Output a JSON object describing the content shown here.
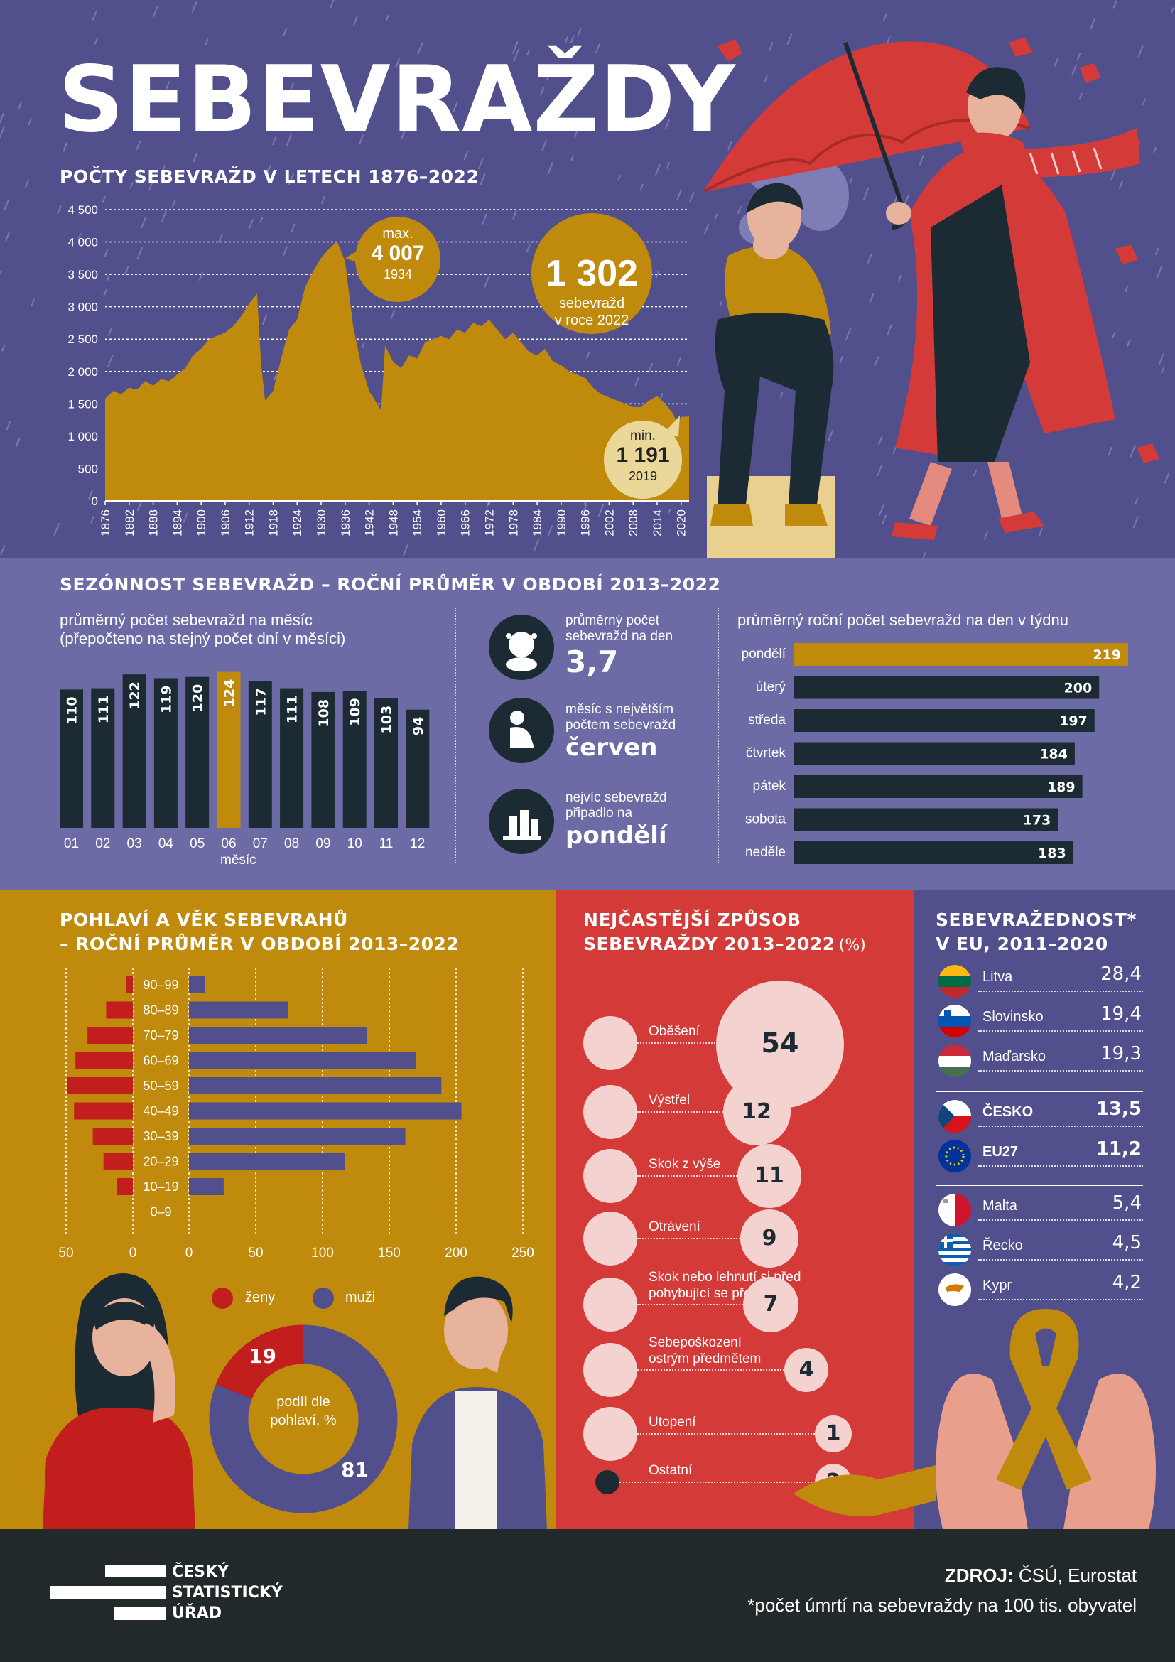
{
  "title": "SEBEVRAŽDY",
  "history": {
    "title": "POČTY SEBEVRAŽD V LETECH 1876–2022",
    "max_label": "max.",
    "max_value": "4 007",
    "max_year": "1934",
    "min_label": "min.",
    "min_value": "1 191",
    "min_year": "2019",
    "current_value": "1 302",
    "current_line1": "sebevražd",
    "current_line2": "v roce 2022"
  },
  "season": {
    "title": "SEZÓNNOST SEBEVRAŽD – ROČNÍ PRŮMĚR V OBDOBÍ 2013–2022",
    "monthly_caption_1": "průměrný počet sebevražd na měsíc",
    "monthly_caption_2": "(přepočteno na stejný počet dní v měsíci)",
    "month_axis": "měsíc",
    "stat1_label_1": "průměrný počet",
    "stat1_label_2": "sebevražd na den",
    "stat1_value": "3,7",
    "stat2_label_1": "měsíc s největším",
    "stat2_label_2": "počtem sebevražd",
    "stat2_value": "červen",
    "stat3_label_1": "nejvíc sebevražd",
    "stat3_label_2": "připadlo na",
    "stat3_value": "pondělí",
    "weekday_caption": "průměrný roční počet sebevražd na den v týdnu"
  },
  "gender": {
    "title_1": "POHLAVÍ A VĚK SEBEVRAHŮ",
    "title_2": "– ROČNÍ PRŮMĚR V OBDOBÍ 2013–2022",
    "legend_women": "ženy",
    "legend_men": "muži",
    "donut_label_1": "podíl dle",
    "donut_label_2": "pohlaví, %",
    "donut_women": "19",
    "donut_men": "81"
  },
  "method": {
    "title_1": "NEJČASTĚJŠÍ ZPŮSOB",
    "title_2": "SEBEVRAŽDY 2013–2022",
    "title_unit": "(%)",
    "items": [
      {
        "label_1": "Oběšení",
        "label_2": "",
        "value": "54"
      },
      {
        "label_1": "Výstřel",
        "label_2": "",
        "value": "12"
      },
      {
        "label_1": "Skok z výše",
        "label_2": "",
        "value": "11"
      },
      {
        "label_1": "Otrávení",
        "label_2": "",
        "value": "9"
      },
      {
        "label_1": "Skok nebo lehnutí si před",
        "label_2": "pohybující se předmět",
        "value": "7"
      },
      {
        "label_1": "Sebepoškození",
        "label_2": "ostrým předmětem",
        "value": "4"
      },
      {
        "label_1": "Utopení",
        "label_2": "",
        "value": "1"
      },
      {
        "label_1": "Ostatní",
        "label_2": "",
        "value": "2"
      }
    ]
  },
  "eu": {
    "title_1": "SEBEVRAŽEDNOST*",
    "title_2": "V EU, 2011–2020",
    "rows": [
      {
        "country": "Litva",
        "value": "28,4",
        "flag": "lithuania"
      },
      {
        "country": "Slovinsko",
        "value": "19,4",
        "flag": "slovenia"
      },
      {
        "country": "Maďarsko",
        "value": "19,3",
        "flag": "hungary"
      },
      {
        "country": "ČESKO",
        "value": "13,5",
        "flag": "czechia"
      },
      {
        "country": "EU27",
        "value": "11,2",
        "flag": "eu"
      },
      {
        "country": "Malta",
        "value": "5,4",
        "flag": "malta"
      },
      {
        "country": "Řecko",
        "value": "4,5",
        "flag": "greece"
      },
      {
        "country": "Kypr",
        "value": "4,2",
        "flag": "cyprus"
      }
    ]
  },
  "footer": {
    "logo_1": "ČESKÝ",
    "logo_2": "STATISTICKÝ",
    "logo_3": "ÚŘAD",
    "source_label": "ZDROJ:",
    "source_text": "ČSÚ, Eurostat",
    "note": "*počet úmrtí na sebevraždy na 100 tis. obyvatel"
  },
  "colors": {
    "gold": "#c08b0d",
    "navy": "#1b2a33",
    "purple": "#524f8d",
    "lilac": "#6c6ba6",
    "red": "#d43b38",
    "pink": "#f4d2cf"
  },
  "chart_data": [
    {
      "type": "area",
      "title": "POČTY SEBEVRAŽD V LETECH 1876–2022",
      "ylim": [
        0,
        4500
      ],
      "yticks": [
        0,
        500,
        1000,
        1500,
        2000,
        2500,
        3000,
        3500,
        4000,
        4500
      ],
      "xticks": [
        1876,
        1882,
        1888,
        1894,
        1900,
        1906,
        1912,
        1918,
        1924,
        1930,
        1936,
        1942,
        1948,
        1954,
        1960,
        1966,
        1972,
        1978,
        1984,
        1990,
        1996,
        2002,
        2008,
        2014,
        2020
      ],
      "x": [
        1876,
        1878,
        1880,
        1882,
        1884,
        1886,
        1888,
        1890,
        1892,
        1894,
        1896,
        1898,
        1900,
        1902,
        1904,
        1906,
        1908,
        1910,
        1912,
        1914,
        1915,
        1916,
        1918,
        1920,
        1922,
        1924,
        1926,
        1928,
        1930,
        1932,
        1934,
        1936,
        1938,
        1940,
        1942,
        1944,
        1945,
        1946,
        1948,
        1950,
        1952,
        1954,
        1956,
        1958,
        1960,
        1962,
        1964,
        1966,
        1968,
        1970,
        1972,
        1974,
        1976,
        1978,
        1980,
        1982,
        1984,
        1986,
        1988,
        1990,
        1992,
        1994,
        1996,
        1998,
        2000,
        2002,
        2004,
        2006,
        2008,
        2010,
        2012,
        2014,
        2016,
        2018,
        2019,
        2020,
        2022
      ],
      "y": [
        1580,
        1700,
        1650,
        1750,
        1720,
        1850,
        1780,
        1880,
        1850,
        1950,
        2050,
        2250,
        2350,
        2500,
        2550,
        2600,
        2700,
        2850,
        3050,
        3200,
        2100,
        1550,
        1700,
        2200,
        2650,
        2800,
        3300,
        3550,
        3750,
        3900,
        4007,
        3700,
        2700,
        2100,
        1700,
        1500,
        1400,
        2400,
        2150,
        2050,
        2250,
        2200,
        2450,
        2500,
        2550,
        2500,
        2650,
        2600,
        2750,
        2700,
        2800,
        2650,
        2500,
        2600,
        2450,
        2300,
        2250,
        2350,
        2150,
        2100,
        2000,
        1950,
        1900,
        1750,
        1650,
        1600,
        1550,
        1500,
        1450,
        1450,
        1550,
        1620,
        1500,
        1350,
        1191,
        1300,
        1302
      ],
      "annotations": [
        {
          "label": "max.",
          "value": 4007,
          "year": 1934
        },
        {
          "label": "min.",
          "value": 1191,
          "year": 2019
        },
        {
          "value": 1302,
          "year": 2022
        }
      ]
    },
    {
      "type": "bar",
      "title": "průměrný počet sebevražd na měsíc",
      "xlabel": "měsíc",
      "categories": [
        "01",
        "02",
        "03",
        "04",
        "05",
        "06",
        "07",
        "08",
        "09",
        "10",
        "11",
        "12"
      ],
      "values": [
        110,
        111,
        122,
        119,
        120,
        124,
        117,
        111,
        108,
        109,
        103,
        94
      ],
      "highlight": "06"
    },
    {
      "type": "bar",
      "orientation": "horizontal",
      "title": "průměrný roční počet sebevražd na den v týdnu",
      "categories": [
        "pondělí",
        "úterý",
        "středa",
        "čtvrtek",
        "pátek",
        "sobota",
        "neděle"
      ],
      "values": [
        219,
        200,
        197,
        184,
        189,
        173,
        183
      ],
      "highlight": "pondělí"
    },
    {
      "type": "bar",
      "orientation": "horizontal",
      "title": "POHLAVÍ A VĚK SEBEVRAHŮ",
      "categories": [
        "90–99",
        "80–89",
        "70–79",
        "60–69",
        "50–59",
        "40–49",
        "30–39",
        "20–29",
        "10–19",
        "0–9"
      ],
      "series": [
        {
          "name": "ženy",
          "values": [
            5,
            20,
            34,
            43,
            49,
            44,
            30,
            22,
            12,
            0
          ]
        },
        {
          "name": "muži",
          "values": [
            12,
            74,
            133,
            170,
            189,
            204,
            162,
            117,
            26,
            0
          ]
        }
      ],
      "women_ticks": [
        50,
        0
      ],
      "men_ticks": [
        0,
        50,
        100,
        150,
        200,
        250
      ]
    },
    {
      "type": "pie",
      "title": "podíl dle pohlaví, %",
      "categories": [
        "ženy",
        "muži"
      ],
      "values": [
        19,
        81
      ]
    }
  ]
}
